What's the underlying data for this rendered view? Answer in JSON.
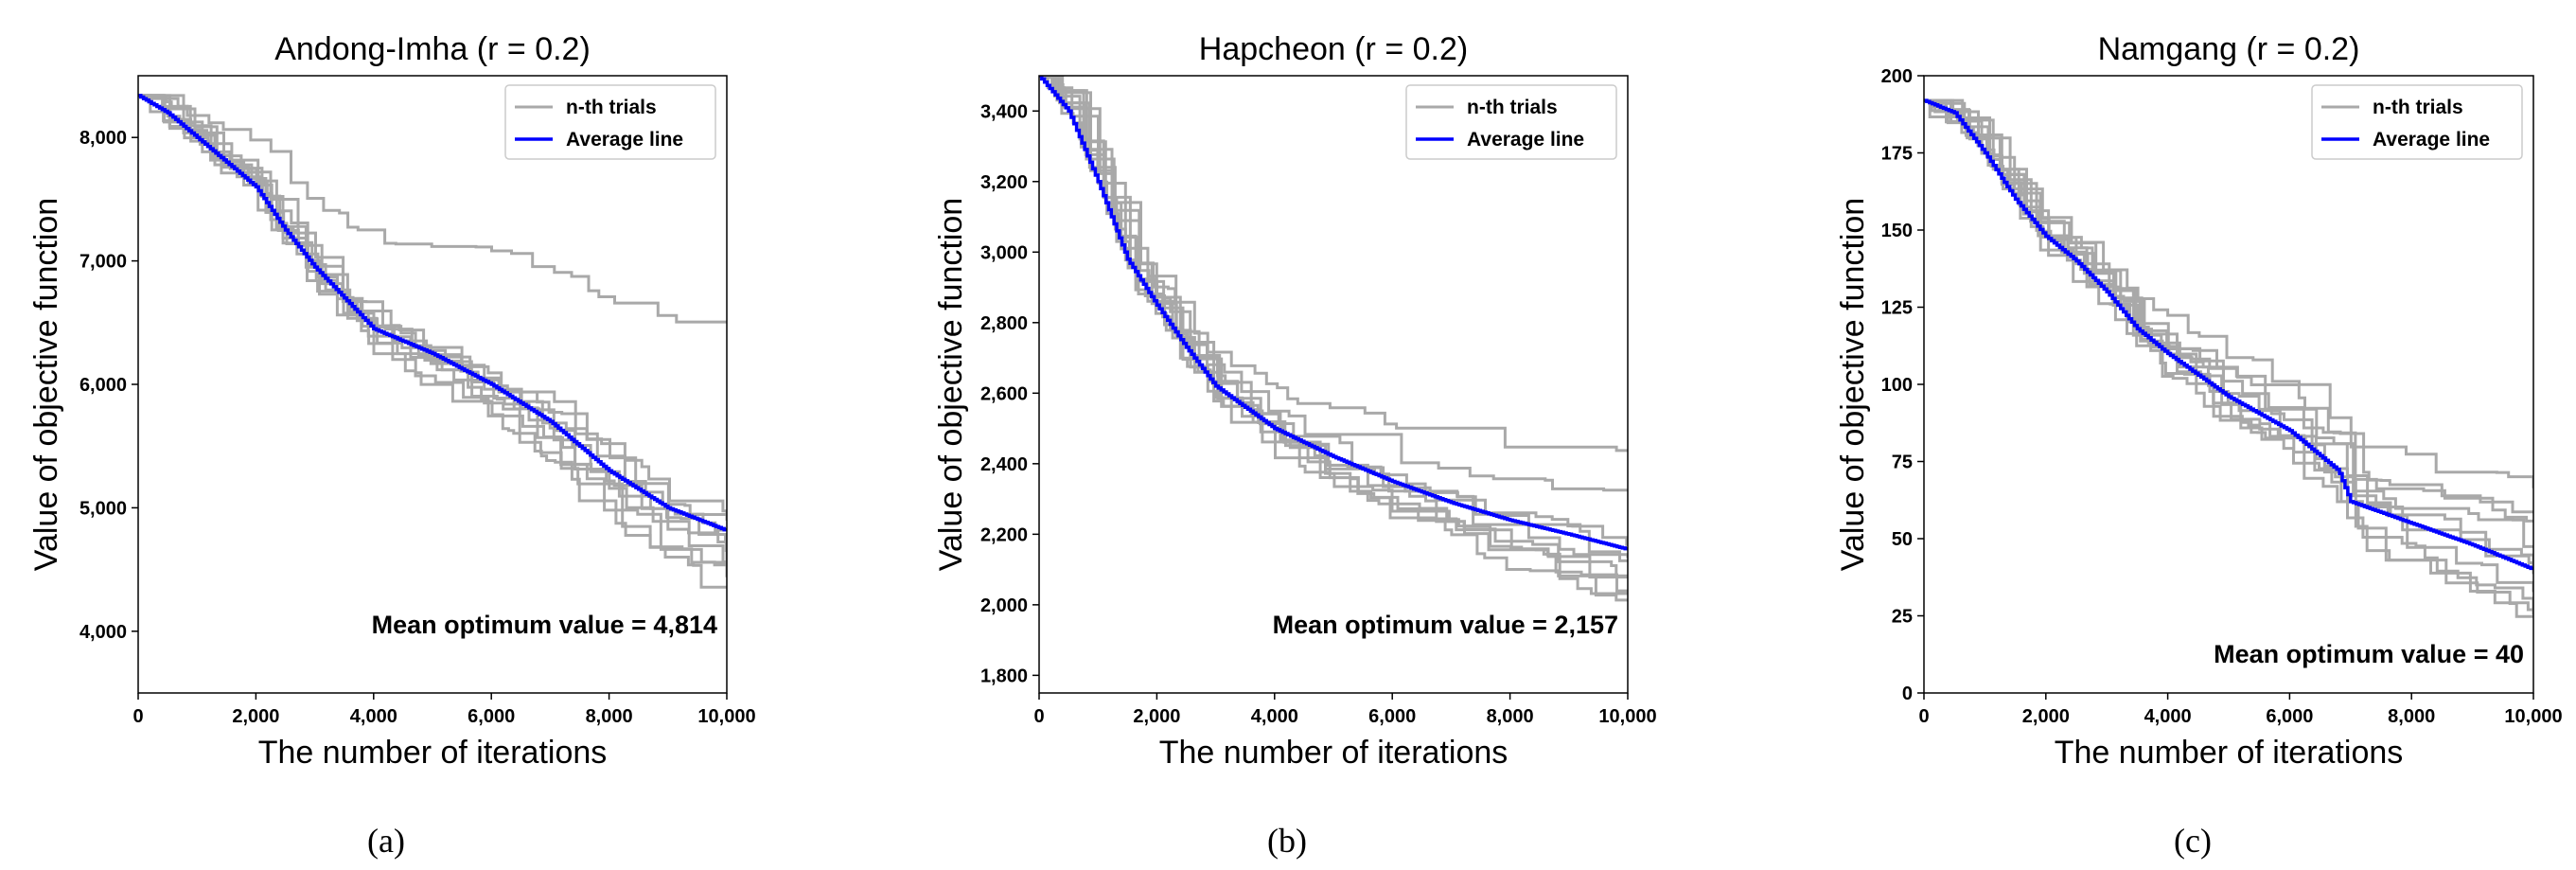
{
  "chart_data": [
    {
      "type": "line",
      "panel": "(a)",
      "title": "Andong-Imha (r = 0.2)",
      "xlabel": "The number of iterations",
      "ylabel": "Value of objective function",
      "xlim": [
        0,
        10000
      ],
      "ylim": [
        3500,
        8500
      ],
      "xticks": [
        0,
        2000,
        4000,
        6000,
        8000,
        10000
      ],
      "xtick_labels": [
        "0",
        "2,000",
        "4,000",
        "6,000",
        "8,000",
        "10,000"
      ],
      "yticks": [
        4000,
        5000,
        6000,
        7000,
        8000
      ],
      "ytick_labels": [
        "4,000",
        "5,000",
        "6,000",
        "7,000",
        "8,000"
      ],
      "legend": [
        "n-th trials",
        "Average line"
      ],
      "legend_position": "top-right",
      "annotation": "Mean optimum value = 4,814",
      "colors": {
        "trials": "#a9a9a9",
        "average": "#0000ff"
      },
      "start": 8340,
      "trial_ends": [
        6530,
        4980,
        4900,
        4850,
        4700,
        4650,
        4620,
        4500,
        4330,
        4450
      ],
      "series": [
        {
          "name": "Average line",
          "x": [
            0,
            500,
            1000,
            1500,
            2000,
            2500,
            3000,
            3500,
            4000,
            5000,
            6000,
            7000,
            8000,
            9000,
            10000
          ],
          "values": [
            8340,
            8200,
            8000,
            7800,
            7600,
            7250,
            6950,
            6700,
            6450,
            6250,
            6000,
            5700,
            5300,
            5000,
            4814
          ]
        }
      ]
    },
    {
      "type": "line",
      "panel": "(b)",
      "title": "Hapcheon (r = 0.2)",
      "xlabel": "The number of iterations",
      "ylabel": "Value of objective function",
      "xlim": [
        0,
        10000
      ],
      "ylim": [
        1750,
        3500
      ],
      "xticks": [
        0,
        2000,
        4000,
        6000,
        8000,
        10000
      ],
      "xtick_labels": [
        "0",
        "2,000",
        "4,000",
        "6,000",
        "8,000",
        "10,000"
      ],
      "yticks": [
        1800,
        2000,
        2200,
        2400,
        2600,
        2800,
        3000,
        3200,
        3400
      ],
      "ytick_labels": [
        "1,800",
        "2,000",
        "2,200",
        "2,400",
        "2,600",
        "2,800",
        "3,000",
        "3,200",
        "3,400"
      ],
      "legend": [
        "n-th trials",
        "Average line"
      ],
      "legend_position": "top-right",
      "annotation": "Mean optimum value = 2,157",
      "colors": {
        "trials": "#a9a9a9",
        "average": "#0000ff"
      },
      "start": 3500,
      "trial_ends": [
        2450,
        2320,
        2200,
        2150,
        2130,
        2100,
        2080,
        2050,
        2030,
        2020
      ],
      "series": [
        {
          "name": "Average line",
          "x": [
            0,
            500,
            1000,
            1500,
            2000,
            2500,
            3000,
            4000,
            5000,
            6000,
            7000,
            8000,
            9000,
            10000
          ],
          "values": [
            3500,
            3400,
            3200,
            2980,
            2850,
            2730,
            2620,
            2500,
            2420,
            2350,
            2290,
            2240,
            2200,
            2157
          ]
        }
      ]
    },
    {
      "type": "line",
      "panel": "(c)",
      "title": "Namgang (r = 0.2)",
      "xlabel": "The number of iterations",
      "ylabel": "Value of objective function",
      "xlim": [
        0,
        10000
      ],
      "ylim": [
        0,
        200
      ],
      "xticks": [
        0,
        2000,
        4000,
        6000,
        8000,
        10000
      ],
      "xtick_labels": [
        "0",
        "2,000",
        "4,000",
        "6,000",
        "8,000",
        "10,000"
      ],
      "yticks": [
        0,
        25,
        50,
        75,
        100,
        125,
        150,
        175,
        200
      ],
      "ytick_labels": [
        "0",
        "25",
        "50",
        "75",
        "100",
        "125",
        "150",
        "175",
        "200"
      ],
      "legend": [
        "n-th trials",
        "Average line"
      ],
      "legend_position": "top-right",
      "annotation": "Mean optimum value = 40",
      "colors": {
        "trials": "#a9a9a9",
        "average": "#0000ff"
      },
      "start": 192,
      "trial_ends": [
        67,
        60,
        55,
        50,
        45,
        40,
        35,
        30,
        27,
        25
      ],
      "series": [
        {
          "name": "Average line",
          "x": [
            0,
            500,
            1000,
            1500,
            2000,
            2500,
            3000,
            3500,
            4000,
            5000,
            6000,
            6800,
            7000,
            8000,
            9000,
            10000
          ],
          "values": [
            192,
            188,
            175,
            160,
            148,
            140,
            130,
            118,
            110,
            96,
            85,
            72,
            62,
            55,
            48,
            40
          ]
        }
      ]
    }
  ]
}
